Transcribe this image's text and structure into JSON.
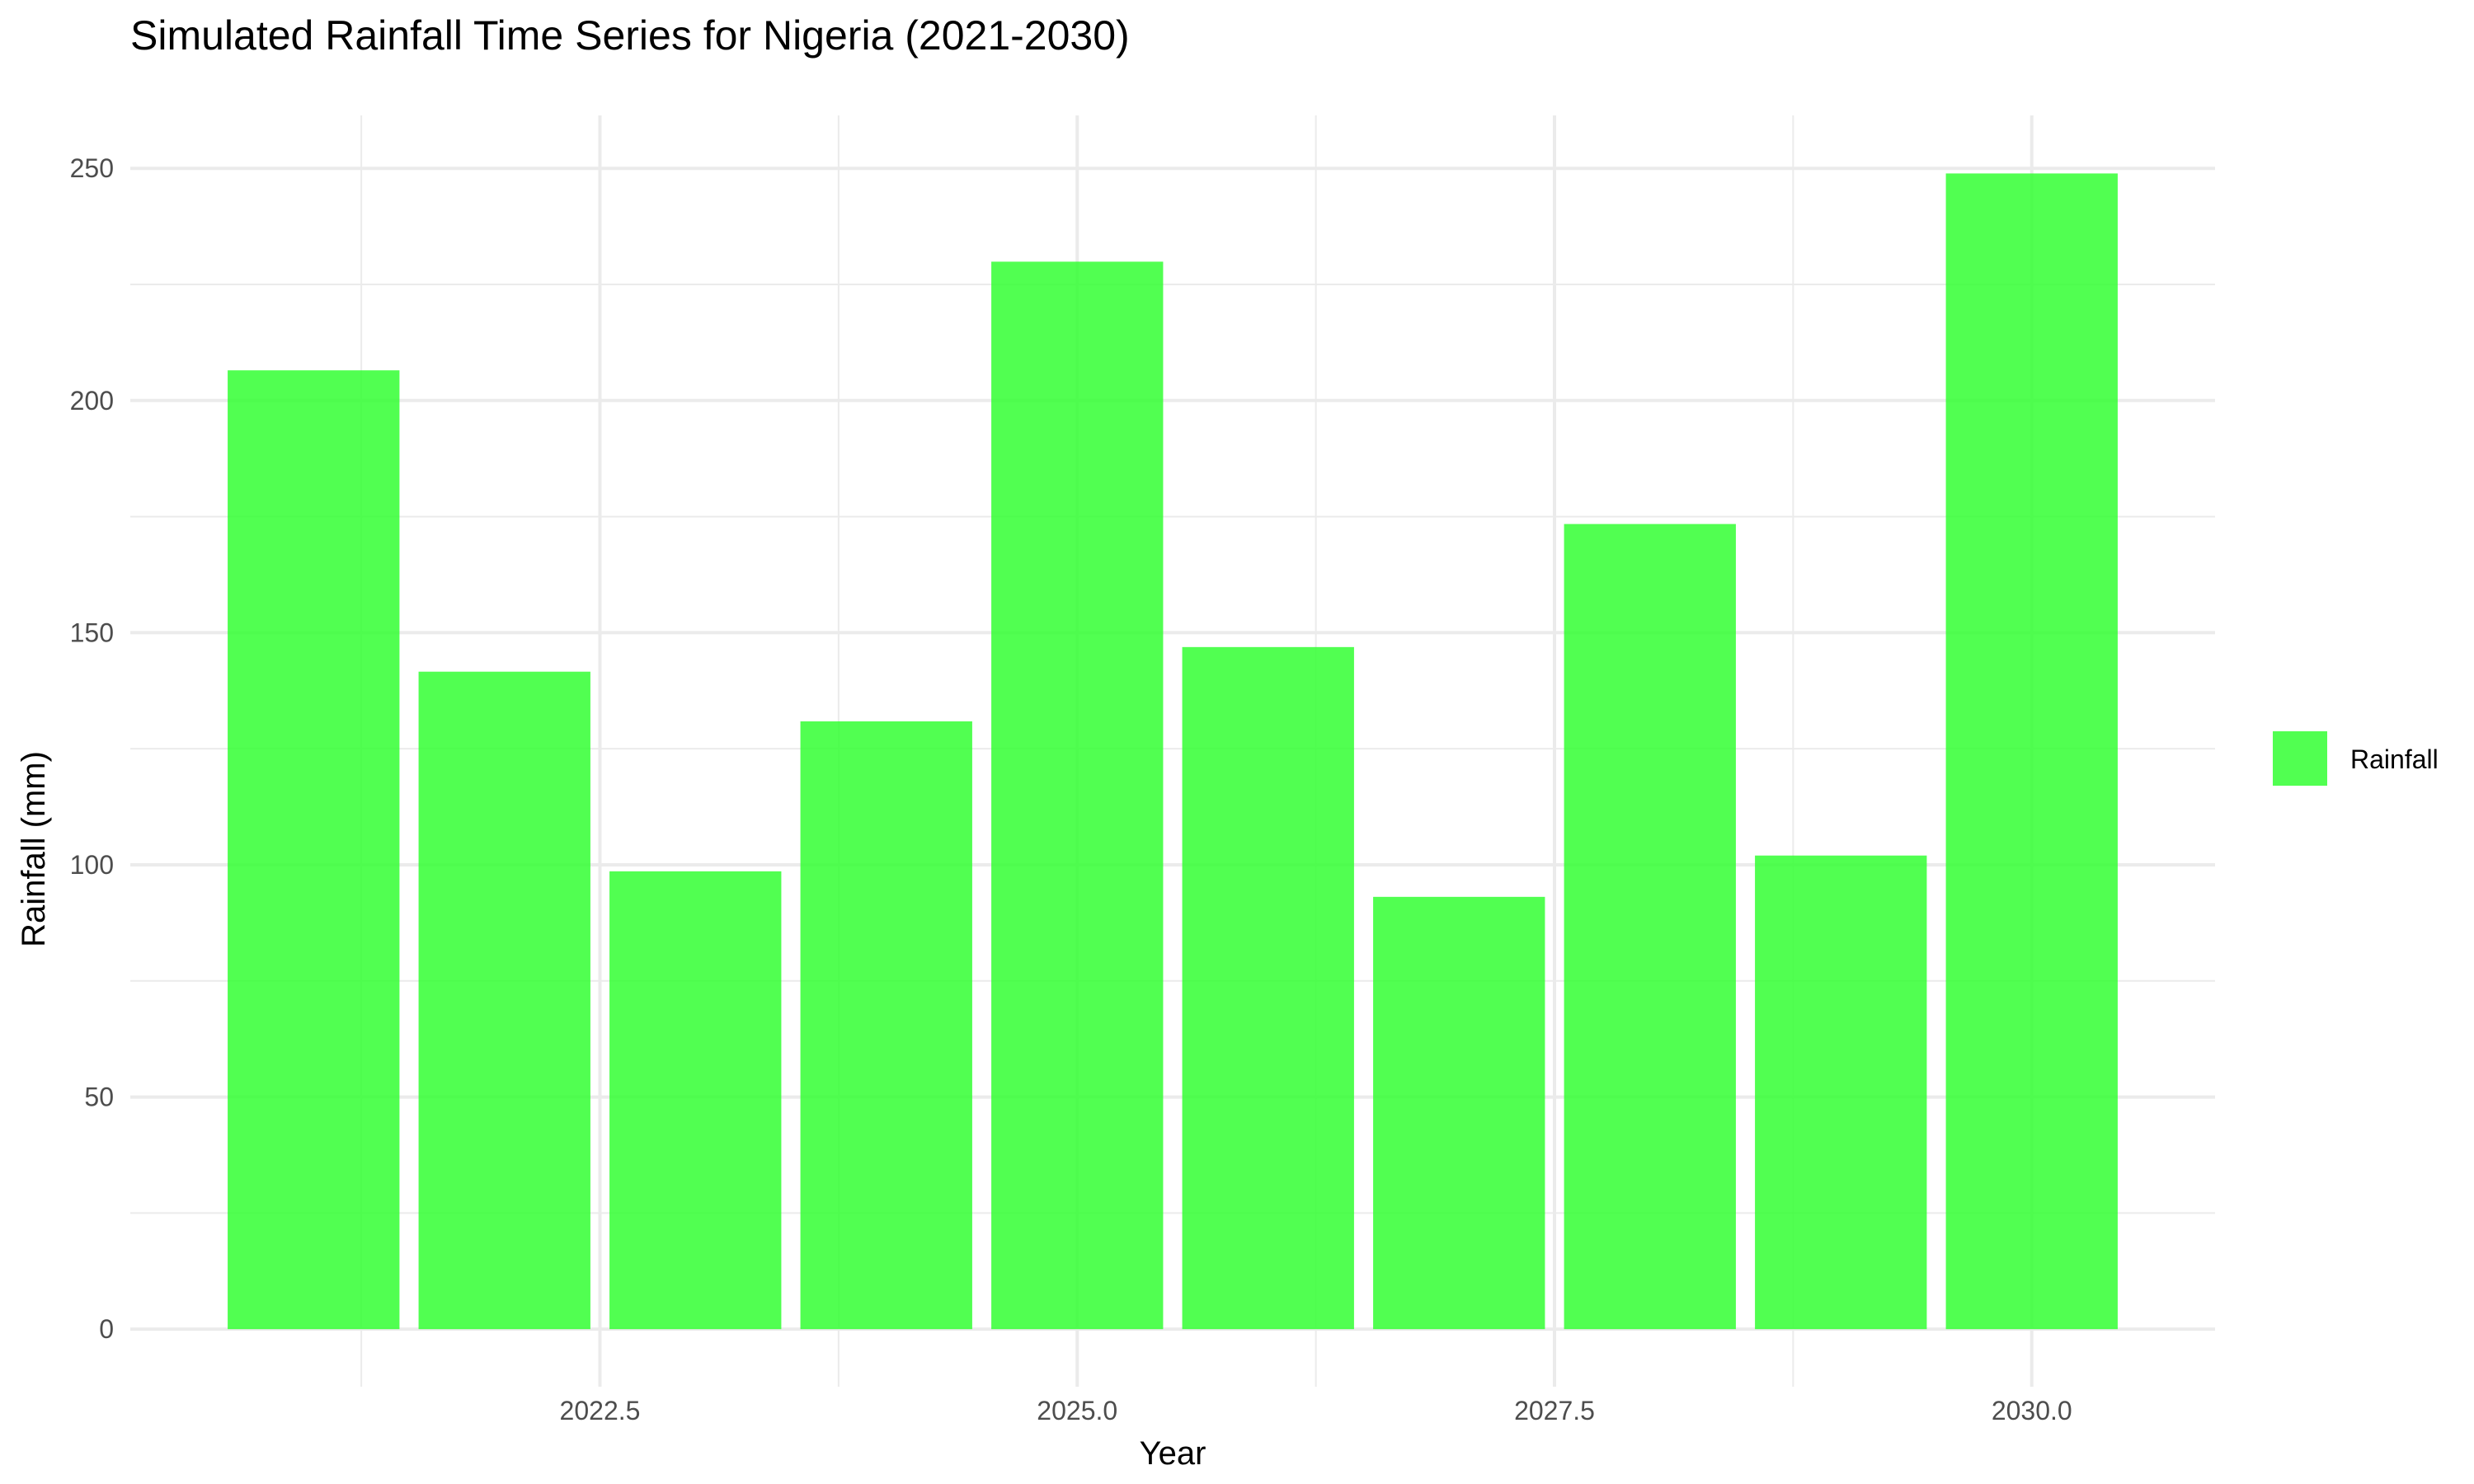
{
  "chart_data": {
    "type": "bar",
    "title": "Simulated Rainfall Time Series for Nigeria (2021-2030)",
    "xlabel": "Year",
    "ylabel": "Rainfall (mm)",
    "x": [
      2021,
      2022,
      2023,
      2024,
      2025,
      2026,
      2027,
      2028,
      2029,
      2030
    ],
    "series": [
      {
        "name": "Rainfall",
        "color": "#33ff33",
        "values": [
          206.5,
          141.6,
          98.6,
          130.9,
          229.9,
          146.9,
          93.1,
          173.4,
          102.0,
          248.9
        ]
      }
    ],
    "xlim": [
      2020.04,
      2030.96
    ],
    "ylim": [
      -12.4,
      261.4
    ],
    "x_ticks": [
      2022.5,
      2025.0,
      2027.5,
      2030.0
    ],
    "x_tick_labels": [
      "2022.5",
      "2025.0",
      "2027.5",
      "2030.0"
    ],
    "y_ticks": [
      0,
      50,
      100,
      150,
      200,
      250
    ],
    "y_tick_labels": [
      "0",
      "50",
      "100",
      "150",
      "200",
      "250"
    ],
    "grid": true,
    "legend_position": "right"
  }
}
